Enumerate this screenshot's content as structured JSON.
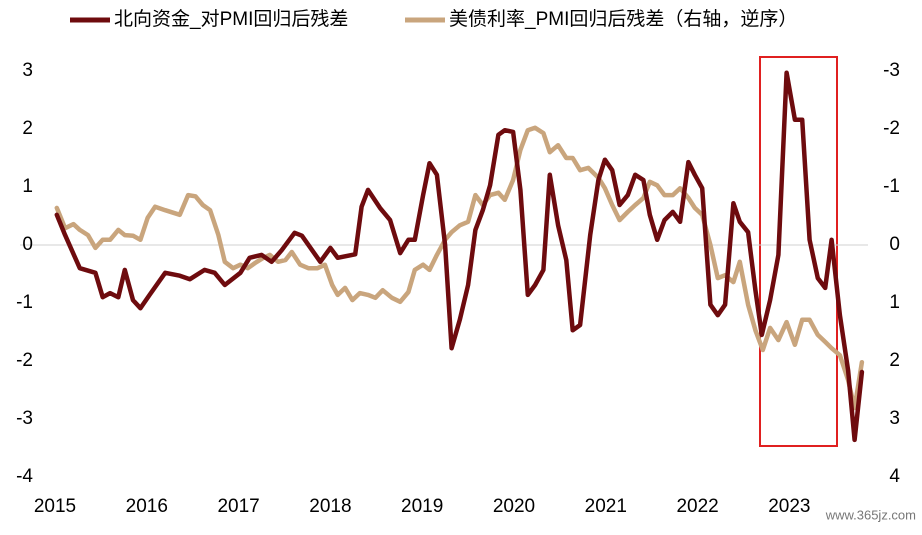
{
  "chart_data": {
    "type": "line",
    "series": [
      {
        "name": "北向资金_对PMI回归后残差",
        "color": "#6e0b0e",
        "axis": "y",
        "x": [
          2015.02,
          2015.11,
          2015.27,
          2015.44,
          2015.52,
          2015.6,
          2015.69,
          2015.76,
          2015.85,
          2015.93,
          2016.03,
          2016.2,
          2016.36,
          2016.47,
          2016.63,
          2016.74,
          2016.85,
          2017.02,
          2017.12,
          2017.25,
          2017.36,
          2017.47,
          2017.61,
          2017.69,
          2017.89,
          2018.0,
          2018.08,
          2018.27,
          2018.34,
          2018.41,
          2018.54,
          2018.65,
          2018.76,
          2018.85,
          2018.92,
          2019.01,
          2019.08,
          2019.16,
          2019.25,
          2019.32,
          2019.41,
          2019.5,
          2019.58,
          2019.66,
          2019.74,
          2019.83,
          2019.9,
          2019.99,
          2020.07,
          2020.15,
          2020.23,
          2020.32,
          2020.39,
          2020.48,
          2020.57,
          2020.64,
          2020.72,
          2020.83,
          2020.92,
          2020.99,
          2021.07,
          2021.15,
          2021.24,
          2021.32,
          2021.41,
          2021.48,
          2021.56,
          2021.64,
          2021.73,
          2021.81,
          2021.9,
          2021.97,
          2022.05,
          2022.14,
          2022.22,
          2022.3,
          2022.39,
          2022.46,
          2022.55,
          2022.63,
          2022.7,
          2022.79,
          2022.88,
          2022.97,
          2023.06,
          2023.14,
          2023.22,
          2023.31,
          2023.39,
          2023.46,
          2023.55,
          2023.64,
          2023.71,
          2023.79
        ],
        "values": [
          0.52,
          0.17,
          -0.4,
          -0.48,
          -0.9,
          -0.83,
          -0.9,
          -0.43,
          -0.95,
          -1.09,
          -0.86,
          -0.48,
          -0.53,
          -0.59,
          -0.43,
          -0.48,
          -0.69,
          -0.48,
          -0.22,
          -0.17,
          -0.29,
          -0.09,
          0.21,
          0.16,
          -0.29,
          -0.05,
          -0.22,
          -0.16,
          0.66,
          0.95,
          0.64,
          0.43,
          -0.14,
          0.09,
          0.09,
          0.86,
          1.41,
          1.21,
          0,
          -1.78,
          -1.29,
          -0.69,
          0.26,
          0.6,
          1.03,
          1.9,
          1.98,
          1.95,
          0.95,
          -0.86,
          -0.69,
          -0.43,
          1.21,
          0.34,
          -0.26,
          -1.47,
          -1.38,
          0.17,
          1.12,
          1.47,
          1.29,
          0.69,
          0.86,
          1.21,
          1.12,
          0.52,
          0.09,
          0.43,
          0.57,
          0.4,
          1.43,
          1.21,
          0.98,
          -1.03,
          -1.21,
          -1.03,
          0.72,
          0.4,
          0.22,
          -0.78,
          -1.55,
          -0.95,
          -0.17,
          2.97,
          2.16,
          2.16,
          0.09,
          -0.57,
          -0.74,
          0.09,
          -1.21,
          -2.16,
          -3.36,
          -2.19
        ]
      },
      {
        "name": "美债利率_PMI回归后残差（右轴，逆序）",
        "color": "#c9a57d",
        "axis": "y2",
        "x": [
          2015.02,
          2015.11,
          2015.2,
          2015.27,
          2015.36,
          2015.44,
          2015.52,
          2015.6,
          2015.69,
          2015.76,
          2015.85,
          2015.93,
          2016.01,
          2016.09,
          2016.2,
          2016.36,
          2016.45,
          2016.53,
          2016.61,
          2016.69,
          2016.78,
          2016.85,
          2016.94,
          2017.02,
          2017.1,
          2017.18,
          2017.27,
          2017.34,
          2017.43,
          2017.51,
          2017.58,
          2017.67,
          2017.76,
          2017.86,
          2017.94,
          2018.02,
          2018.08,
          2018.16,
          2018.24,
          2018.32,
          2018.41,
          2018.49,
          2018.57,
          2018.67,
          2018.76,
          2018.85,
          2018.92,
          2019.01,
          2019.08,
          2019.16,
          2019.25,
          2019.32,
          2019.41,
          2019.5,
          2019.58,
          2019.66,
          2019.74,
          2019.83,
          2019.9,
          2019.99,
          2020.07,
          2020.15,
          2020.23,
          2020.32,
          2020.39,
          2020.48,
          2020.57,
          2020.64,
          2020.72,
          2020.81,
          2020.92,
          2020.99,
          2021.07,
          2021.15,
          2021.24,
          2021.32,
          2021.41,
          2021.48,
          2021.56,
          2021.64,
          2021.73,
          2021.81,
          2021.9,
          2021.97,
          2022.05,
          2022.14,
          2022.22,
          2022.3,
          2022.39,
          2022.46,
          2022.55,
          2022.63,
          2022.71,
          2022.79,
          2022.88,
          2022.97,
          2023.06,
          2023.14,
          2023.22,
          2023.31,
          2023.39,
          2023.46,
          2023.55,
          2023.64,
          2023.71,
          2023.79
        ],
        "values": [
          -0.64,
          -0.29,
          -0.36,
          -0.26,
          -0.17,
          0.05,
          -0.09,
          -0.09,
          -0.26,
          -0.17,
          -0.16,
          -0.09,
          -0.47,
          -0.66,
          -0.6,
          -0.52,
          -0.86,
          -0.84,
          -0.69,
          -0.6,
          -0.17,
          0.29,
          0.4,
          0.34,
          0.4,
          0.31,
          0.22,
          0.17,
          0.29,
          0.26,
          0.12,
          0.34,
          0.4,
          0.4,
          0.34,
          0.69,
          0.86,
          0.74,
          0.95,
          0.83,
          0.86,
          0.91,
          0.78,
          0.91,
          0.98,
          0.81,
          0.43,
          0.34,
          0.43,
          0.17,
          -0.09,
          -0.22,
          -0.34,
          -0.4,
          -0.86,
          -0.69,
          -0.86,
          -0.9,
          -0.78,
          -1.12,
          -1.64,
          -1.98,
          -2.02,
          -1.93,
          -1.6,
          -1.72,
          -1.5,
          -1.5,
          -1.29,
          -1.33,
          -1.16,
          -0.98,
          -0.69,
          -0.43,
          -0.57,
          -0.69,
          -0.81,
          -1.09,
          -1.03,
          -0.86,
          -0.86,
          -0.98,
          -0.81,
          -0.64,
          -0.52,
          0,
          0.57,
          0.52,
          0.64,
          0.29,
          1.03,
          1.47,
          1.81,
          1.43,
          1.64,
          1.33,
          1.72,
          1.29,
          1.29,
          1.55,
          1.67,
          1.78,
          1.9,
          2.33,
          2.81,
          2.02
        ]
      }
    ],
    "xlim": [
      2015,
      2023.9
    ],
    "xticks": [
      2015,
      2016,
      2017,
      2018,
      2019,
      2020,
      2021,
      2022,
      2023
    ],
    "ylim": [
      -4,
      3
    ],
    "yticks": [
      -4,
      -3,
      -2,
      -1,
      0,
      1,
      2,
      3
    ],
    "y2lim": [
      4,
      -3
    ],
    "y2ticks": [
      4,
      3,
      2,
      1,
      0,
      -1,
      -2,
      -3
    ],
    "y2_inverted": true,
    "hline": 0,
    "legend": "top",
    "watermark": "www.365jz.com"
  }
}
